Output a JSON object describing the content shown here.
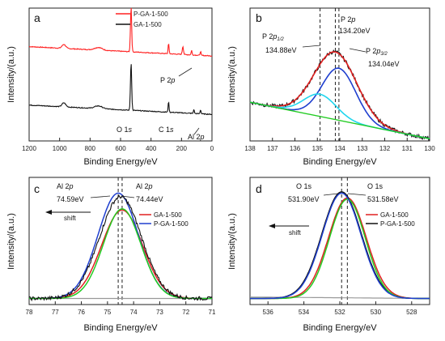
{
  "chart_data": [
    {
      "panel": "a",
      "type": "line",
      "xlabel": "Binding Energy/eV",
      "ylabel": "Intensity/(a.u.)",
      "xlim": [
        1200,
        0
      ],
      "xticks": [
        1200,
        1000,
        800,
        600,
        400,
        200,
        0
      ],
      "legend": "top-right",
      "series": [
        {
          "name": "P-GA-1-500",
          "color": "#ff2020",
          "offset": 0.64,
          "peaks": [
            [
              972,
              0.03,
              12
            ],
            [
              745,
              0.02,
              25
            ],
            [
              531,
              0.34,
              4
            ],
            [
              285,
              0.08,
              3
            ],
            [
              191,
              0.06,
              4
            ],
            [
              134,
              0.035,
              3
            ],
            [
              75,
              0.03,
              3
            ]
          ]
        },
        {
          "name": "GA-1-500",
          "color": "#111111",
          "offset": 0.2,
          "peaks": [
            [
              972,
              0.03,
              12
            ],
            [
              745,
              0.02,
              25
            ],
            [
              531,
              0.36,
              4
            ],
            [
              285,
              0.08,
              3
            ],
            [
              119,
              0.03,
              3
            ],
            [
              75,
              0.03,
              3
            ]
          ]
        }
      ],
      "annotations": [
        "P 2p",
        "O 1s",
        "C 1s",
        "Al 2p"
      ]
    },
    {
      "panel": "b",
      "type": "line",
      "xlabel": "Binding Energy/eV",
      "ylabel": "Intensity/(a.u.)",
      "xlim": [
        138,
        130
      ],
      "xticks": [
        138,
        137,
        136,
        135,
        134,
        133,
        132,
        131,
        130
      ],
      "vlines": [
        134.88,
        134.2,
        134.04
      ],
      "labels": [
        "P 2p",
        "134.20eV",
        "P 2p1/2",
        "134.88eV",
        "P 2p3/2",
        "134.04eV"
      ],
      "series": [
        {
          "role": "raw",
          "color": "#111111",
          "center": 134.2,
          "amp": 0.61,
          "sigma": 0.95
        },
        {
          "role": "envelope",
          "color": "#e02020",
          "center": 134.2,
          "amp": 0.61,
          "sigma": 0.95
        },
        {
          "role": "P2p3/2",
          "color": "#1f3fcf",
          "center": 134.04,
          "amp": 0.47,
          "sigma": 0.75
        },
        {
          "role": "P2p1/2",
          "color": "#22d6ee",
          "center": 134.88,
          "amp": 0.2,
          "sigma": 0.72
        },
        {
          "role": "background",
          "color": "#22cc22",
          "from": [
            138,
            0.15
          ],
          "to": [
            130,
            -0.18
          ]
        }
      ]
    },
    {
      "panel": "c",
      "type": "line",
      "xlabel": "Binding Energy/eV",
      "ylabel": "Intensity/(a.u.)",
      "xlim": [
        78,
        71
      ],
      "xticks": [
        78,
        77,
        76,
        75,
        74,
        73,
        72,
        71
      ],
      "vlines": [
        74.59,
        74.44
      ],
      "labels": [
        "Al 2p",
        "74.59eV",
        "Al 2p",
        "74.44eV",
        "shift"
      ],
      "legend": "right",
      "series": [
        {
          "name": "GA-1-500",
          "color": "#e02020",
          "center": 74.44,
          "amp": 0.73,
          "sigma": 0.78
        },
        {
          "name": "P-GA-1-500",
          "color": "#1f3fcf",
          "center": 74.59,
          "amp": 0.87,
          "sigma": 0.77
        },
        {
          "role": "raw",
          "color": "#111111",
          "center": 74.5,
          "amp": 0.84,
          "sigma": 0.8
        },
        {
          "role": "fit",
          "color": "#22cc22",
          "center": 74.44,
          "amp": 0.74,
          "sigma": 0.72
        }
      ]
    },
    {
      "panel": "d",
      "type": "line",
      "xlabel": "Binding Energy/eV",
      "ylabel": "Intensity/(a.u.)",
      "xlim": [
        537,
        527
      ],
      "xticks": [
        536,
        534,
        532,
        530,
        528
      ],
      "vlines": [
        531.9,
        531.58
      ],
      "labels": [
        "O 1s",
        "531.90eV",
        "O 1s",
        "531.58eV",
        "shift"
      ],
      "legend": "right",
      "series": [
        {
          "name": "GA-1-500",
          "color": "#e02020",
          "center": 531.58,
          "amp": 0.83,
          "sigma": 1.05
        },
        {
          "name": "P-GA-1-500",
          "color": "#111111",
          "center": 531.9,
          "amp": 0.88,
          "sigma": 1.1
        },
        {
          "role": "fit",
          "color": "#1f3fcf",
          "center": 531.9,
          "amp": 0.87,
          "sigma": 1.08
        },
        {
          "role": "fit",
          "color": "#22cc22",
          "center": 531.58,
          "amp": 0.82,
          "sigma": 1.0
        }
      ]
    }
  ],
  "text": {
    "a": {
      "label": "a",
      "ylabel": "Intensity/(a.u.)",
      "xlabel": "Binding Energy/eV",
      "legend1": "P-GA-1-500",
      "legend2": "GA-1-500",
      "p2p": "P 2",
      "p2p_i": "p",
      "o1s": "O 1",
      "o1s_i": "s",
      "c1s": "C 1",
      "c1s_i": "s",
      "al2p": "Al 2",
      "al2p_i": "p"
    },
    "b": {
      "label": "b",
      "ylabel": "Intensity/(a.u.)",
      "xlabel": "Binding Energy/eV",
      "p2p": "P 2",
      "p2p_i": "p",
      "e134_20": "134.20eV",
      "p2p12": "P 2",
      "p2p12_i": "p",
      "p2p12_sub": "1/2",
      "e134_88": "134.88eV",
      "p2p32": "P 2",
      "p2p32_i": "p",
      "p2p32_sub": "3/2",
      "e134_04": "134.04eV"
    },
    "c": {
      "label": "c",
      "ylabel": "Intensity/(a.u.)",
      "xlabel": "Binding Energy/eV",
      "al1": "Al 2",
      "al1_i": "p",
      "e74_59": "74.59eV",
      "al2": "Al 2",
      "al2_i": "p",
      "e74_44": "74.44eV",
      "shift": "shift",
      "legend1": "GA-1-500",
      "legend2": "P-GA-1-500"
    },
    "d": {
      "label": "d",
      "ylabel": "Intensity/(a.u.)",
      "xlabel": "Binding Energy/eV",
      "o1": "O 1s",
      "e531_90": "531.90eV",
      "o2": "O 1s",
      "e531_58": "531.58eV",
      "shift": "shift",
      "legend1": "GA-1-500",
      "legend2": "P-GA-1-500"
    }
  }
}
